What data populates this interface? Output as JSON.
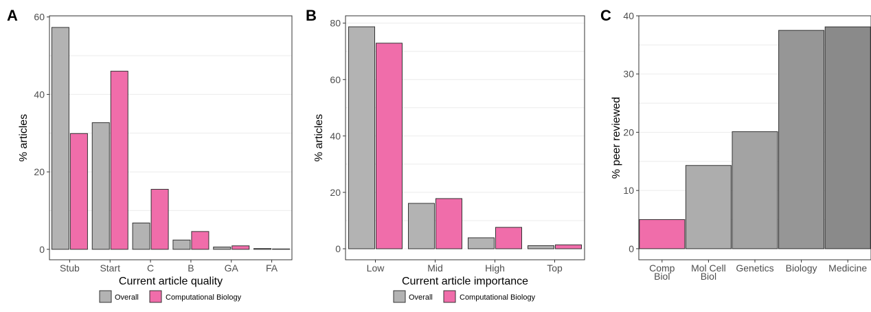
{
  "colors": {
    "overall": "#b3b3b3",
    "computational_biology": "#f06daa",
    "gradient": [
      "#b3b3b3",
      "#adadad",
      "#a3a3a3",
      "#969696",
      "#8a8a8a"
    ]
  },
  "legend": {
    "overall": "Overall",
    "computational_biology": "Computational Biology"
  },
  "chart_data": [
    {
      "type": "bar",
      "panel_label": "A",
      "categories": [
        "Stub",
        "Start",
        "C",
        "B",
        "GA",
        "FA"
      ],
      "series": [
        {
          "name": "Overall",
          "values": [
            57.3,
            32.7,
            6.8,
            2.4,
            0.6,
            0.2
          ]
        },
        {
          "name": "Computational Biology",
          "values": [
            29.9,
            46.0,
            15.5,
            4.6,
            0.9,
            0.1
          ]
        }
      ],
      "xlabel": "Current article quality",
      "ylabel": "% articles",
      "ylim": [
        -2.7,
        60.3
      ],
      "yticks": [
        0,
        20,
        40,
        60
      ],
      "grid": true,
      "legend": "bottom"
    },
    {
      "type": "bar",
      "panel_label": "B",
      "categories": [
        "Low",
        "Mid",
        "High",
        "Top"
      ],
      "series": [
        {
          "name": "Overall",
          "values": [
            78.7,
            16.1,
            3.9,
            1.1
          ]
        },
        {
          "name": "Computational Biology",
          "values": [
            72.9,
            17.8,
            7.6,
            1.4
          ]
        }
      ],
      "xlabel": "Current article importance",
      "ylabel": "% articles",
      "ylim": [
        -3.9,
        82.6
      ],
      "yticks": [
        0,
        20,
        40,
        60,
        80
      ],
      "grid": true,
      "legend": "bottom"
    },
    {
      "type": "bar",
      "panel_label": "C",
      "categories": [
        "Comp\nBiol",
        "Mol Cell\nBiol",
        "Genetics",
        "Biology",
        "Medicine"
      ],
      "values": [
        5.0,
        14.3,
        20.1,
        37.5,
        38.1
      ],
      "xlabel": "",
      "ylabel": "% peer reviewed",
      "ylim": [
        -1.9,
        40.0
      ],
      "yticks": [
        0,
        10,
        20,
        30,
        40
      ],
      "grid": true
    }
  ]
}
